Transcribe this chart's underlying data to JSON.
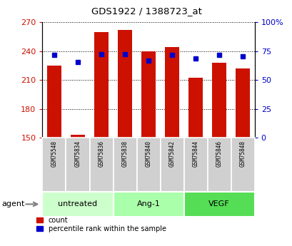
{
  "title": "GDS1922 / 1388723_at",
  "samples": [
    "GSM75548",
    "GSM75834",
    "GSM75836",
    "GSM75838",
    "GSM75840",
    "GSM75842",
    "GSM75844",
    "GSM75846",
    "GSM75848"
  ],
  "counts": [
    225,
    153,
    260,
    262,
    240,
    244,
    212,
    228,
    222
  ],
  "percentiles": [
    71.5,
    65.5,
    72.5,
    72.0,
    67.0,
    71.5,
    68.5,
    71.5,
    70.5
  ],
  "bar_bottom": 150,
  "ylim": [
    150,
    270
  ],
  "ylim_right": [
    0,
    100
  ],
  "yticks_left": [
    150,
    180,
    210,
    240,
    270
  ],
  "yticks_right": [
    0,
    25,
    50,
    75,
    100
  ],
  "groups": [
    {
      "label": "untreated",
      "start": 0,
      "end": 3,
      "color": "#ccffcc"
    },
    {
      "label": "Ang-1",
      "start": 3,
      "end": 6,
      "color": "#aaffaa"
    },
    {
      "label": "VEGF",
      "start": 6,
      "end": 9,
      "color": "#55dd55"
    }
  ],
  "bar_color": "#cc1100",
  "dot_color": "#0000cc",
  "tick_color_left": "#cc1100",
  "tick_color_right": "#0000cc",
  "grid_color": "#000000",
  "background_color": "#ffffff",
  "plot_bg_color": "#ffffff",
  "sample_bg_color": "#d0d0d0",
  "legend_items": [
    "count",
    "percentile rank within the sample"
  ]
}
